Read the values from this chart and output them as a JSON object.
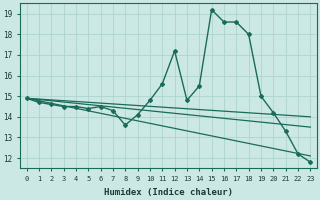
{
  "xlabel": "Humidex (Indice chaleur)",
  "bg_color": "#cce8e4",
  "grid_color": "#add4ce",
  "line_color": "#1a6b5a",
  "xlim": [
    -0.5,
    23.5
  ],
  "ylim": [
    11.5,
    19.5
  ],
  "yticks": [
    12,
    13,
    14,
    15,
    16,
    17,
    18,
    19
  ],
  "xticks": [
    0,
    1,
    2,
    3,
    4,
    5,
    6,
    7,
    8,
    9,
    10,
    11,
    12,
    13,
    14,
    15,
    16,
    17,
    18,
    19,
    20,
    21,
    22,
    23
  ],
  "series": [
    {
      "x": [
        0,
        1,
        2,
        3,
        4,
        5,
        6,
        7,
        8,
        9,
        10,
        11,
        12,
        13,
        14,
        15,
        16,
        17,
        18,
        19,
        20,
        21,
        22,
        23
      ],
      "y": [
        14.9,
        14.7,
        14.6,
        14.5,
        14.5,
        14.4,
        14.5,
        14.3,
        13.6,
        14.1,
        14.8,
        15.6,
        17.2,
        14.8,
        15.5,
        19.2,
        18.6,
        18.6,
        18.0,
        15.0,
        14.2,
        13.3,
        12.2,
        11.8
      ],
      "marker": "D",
      "markersize": 2.0,
      "linewidth": 1.0,
      "has_marker": true
    },
    {
      "x": [
        0,
        23
      ],
      "y": [
        14.9,
        14.0
      ],
      "marker": null,
      "markersize": 0,
      "linewidth": 0.9,
      "has_marker": false
    },
    {
      "x": [
        0,
        23
      ],
      "y": [
        14.9,
        13.5
      ],
      "marker": null,
      "markersize": 0,
      "linewidth": 0.9,
      "has_marker": false
    },
    {
      "x": [
        0,
        23
      ],
      "y": [
        14.9,
        12.1
      ],
      "marker": null,
      "markersize": 0,
      "linewidth": 0.9,
      "has_marker": false
    }
  ]
}
